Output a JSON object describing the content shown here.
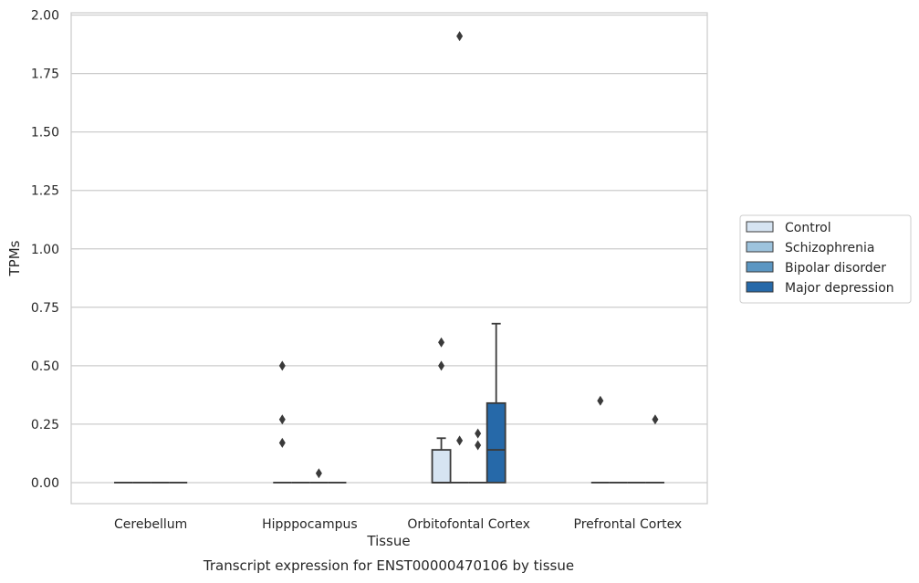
{
  "chart_data": {
    "type": "box",
    "title": "",
    "caption": "Transcript expression for ENST00000470106 by tissue",
    "xlabel": "Tissue",
    "ylabel": "TPMs",
    "ylim": [
      -0.09,
      2.01
    ],
    "yticks": [
      "0.00",
      "0.25",
      "0.50",
      "0.75",
      "1.00",
      "1.25",
      "1.50",
      "1.75",
      "2.00"
    ],
    "grid": true,
    "legend_position": "right",
    "categories": [
      "Cerebellum",
      "Hipppocampus",
      "Orbitofontal Cortex",
      "Prefrontal Cortex"
    ],
    "series": [
      {
        "name": "Control",
        "color": "#d6e4f2",
        "boxes": [
          {
            "q1": 0,
            "median": 0,
            "q3": 0,
            "whisker_low": 0,
            "whisker_high": 0,
            "outliers": []
          },
          {
            "q1": 0,
            "median": 0,
            "q3": 0,
            "whisker_low": 0,
            "whisker_high": 0,
            "outliers": [
              0.17,
              0.27,
              0.5
            ]
          },
          {
            "q1": 0,
            "median": 0,
            "q3": 0.14,
            "whisker_low": 0,
            "whisker_high": 0.19,
            "outliers": [
              0.5,
              0.6
            ]
          },
          {
            "q1": 0,
            "median": 0,
            "q3": 0,
            "whisker_low": 0,
            "whisker_high": 0,
            "outliers": [
              0.35
            ]
          }
        ]
      },
      {
        "name": "Schizophrenia",
        "color": "#9dc3dd",
        "boxes": [
          {
            "q1": 0,
            "median": 0,
            "q3": 0,
            "whisker_low": 0,
            "whisker_high": 0,
            "outliers": []
          },
          {
            "q1": 0,
            "median": 0,
            "q3": 0,
            "whisker_low": 0,
            "whisker_high": 0,
            "outliers": []
          },
          {
            "q1": 0,
            "median": 0,
            "q3": 0,
            "whisker_low": 0,
            "whisker_high": 0,
            "outliers": [
              0.18,
              1.91
            ]
          },
          {
            "q1": 0,
            "median": 0,
            "q3": 0,
            "whisker_low": 0,
            "whisker_high": 0,
            "outliers": []
          }
        ]
      },
      {
        "name": "Bipolar disorder",
        "color": "#5b96c2",
        "boxes": [
          {
            "q1": 0,
            "median": 0,
            "q3": 0,
            "whisker_low": 0,
            "whisker_high": 0,
            "outliers": []
          },
          {
            "q1": 0,
            "median": 0,
            "q3": 0,
            "whisker_low": 0,
            "whisker_high": 0,
            "outliers": [
              0.04
            ]
          },
          {
            "q1": 0,
            "median": 0,
            "q3": 0,
            "whisker_low": 0,
            "whisker_high": 0,
            "outliers": [
              0.16,
              0.21
            ]
          },
          {
            "q1": 0,
            "median": 0,
            "q3": 0,
            "whisker_low": 0,
            "whisker_high": 0,
            "outliers": []
          }
        ]
      },
      {
        "name": "Major depression",
        "color": "#2669a9",
        "boxes": [
          {
            "q1": 0,
            "median": 0,
            "q3": 0,
            "whisker_low": 0,
            "whisker_high": 0,
            "outliers": []
          },
          {
            "q1": 0,
            "median": 0,
            "q3": 0,
            "whisker_low": 0,
            "whisker_high": 0,
            "outliers": []
          },
          {
            "q1": 0,
            "median": 0.14,
            "q3": 0.34,
            "whisker_low": 0,
            "whisker_high": 0.68,
            "outliers": []
          },
          {
            "q1": 0,
            "median": 0,
            "q3": 0,
            "whisker_low": 0,
            "whisker_high": 0,
            "outliers": [
              0.27
            ]
          }
        ]
      }
    ]
  }
}
